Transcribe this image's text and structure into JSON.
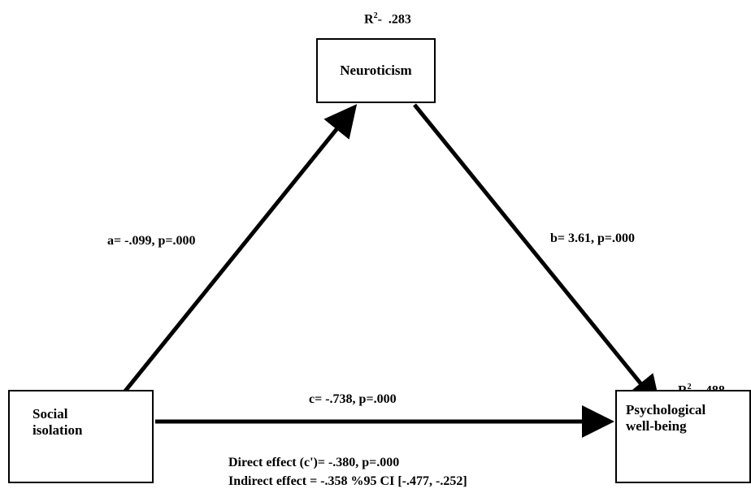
{
  "nodes": {
    "mediator": {
      "label": "Neuroticism",
      "r2_label": "R",
      "r2_sup": "2",
      "r2_sep": "-",
      "r2_value": ".283"
    },
    "independent": {
      "line1": "Social",
      "line2": "isolation"
    },
    "dependent": {
      "line1": "Psychological",
      "line2": "well-being",
      "r2_label": "R",
      "r2_sup": "2",
      "r2_sep": "-",
      "r2_value": ".488"
    }
  },
  "paths": {
    "a": "a= -.099, p=.000",
    "b": "b= 3.61, p=.000",
    "c": "c= -.738, p=.000"
  },
  "effects": {
    "direct": "Direct effect (c')= -.380, p=.000",
    "indirect": "Indirect effect = -.358 %95 CI [-.477, -.252]"
  },
  "colors": {
    "line": "#000000",
    "box_border": "#000000",
    "background": "#ffffff"
  }
}
